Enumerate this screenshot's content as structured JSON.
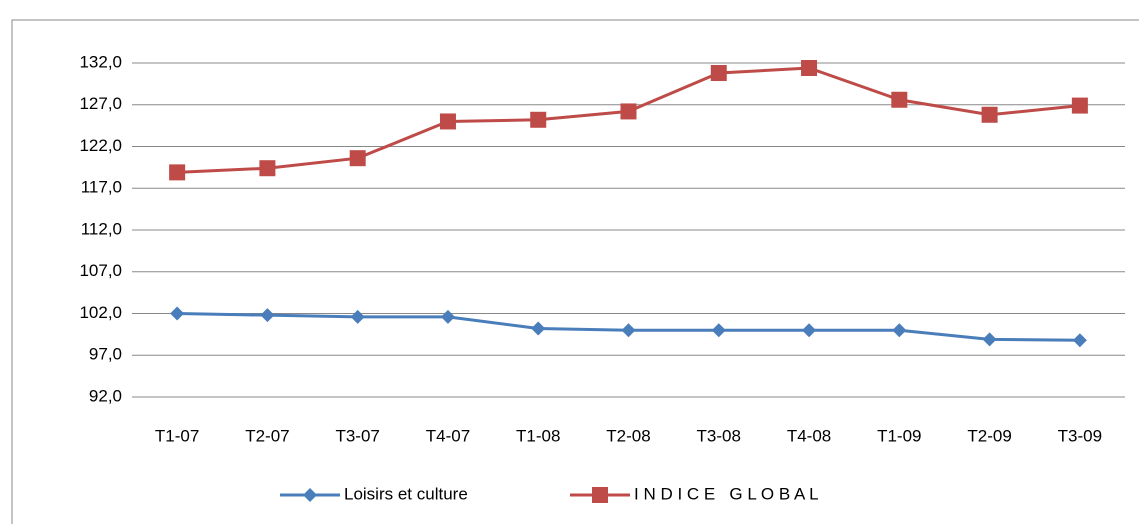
{
  "chart_data": {
    "type": "line",
    "categories": [
      "T1-07",
      "T2-07",
      "T3-07",
      "T4-07",
      "T1-08",
      "T2-08",
      "T3-08",
      "T4-08",
      "T1-09",
      "T2-09",
      "T3-09"
    ],
    "series": [
      {
        "name": "Loisirs et culture",
        "color": "#4a7ebb",
        "marker": "diamond",
        "values": [
          102.0,
          101.8,
          101.6,
          101.6,
          100.2,
          100.0,
          100.0,
          100.0,
          100.0,
          98.9,
          98.8
        ]
      },
      {
        "name": "I N D I C E   G L O B A L",
        "color": "#be4b48",
        "marker": "square",
        "values": [
          118.9,
          119.4,
          120.6,
          125.0,
          125.2,
          126.2,
          130.8,
          131.4,
          127.6,
          125.8,
          126.9
        ]
      }
    ],
    "ylim": [
      92,
      132
    ],
    "yticks": [
      {
        "value": 92,
        "label": "92,0"
      },
      {
        "value": 97,
        "label": "97,0"
      },
      {
        "value": 102,
        "label": "102,0"
      },
      {
        "value": 107,
        "label": "107,0"
      },
      {
        "value": 112,
        "label": "112,0"
      },
      {
        "value": 117,
        "label": "117,0"
      },
      {
        "value": 122,
        "label": "122,0"
      },
      {
        "value": 127,
        "label": "127,0"
      },
      {
        "value": 132,
        "label": "132,0"
      }
    ],
    "grid": true,
    "legend": "bottom"
  }
}
